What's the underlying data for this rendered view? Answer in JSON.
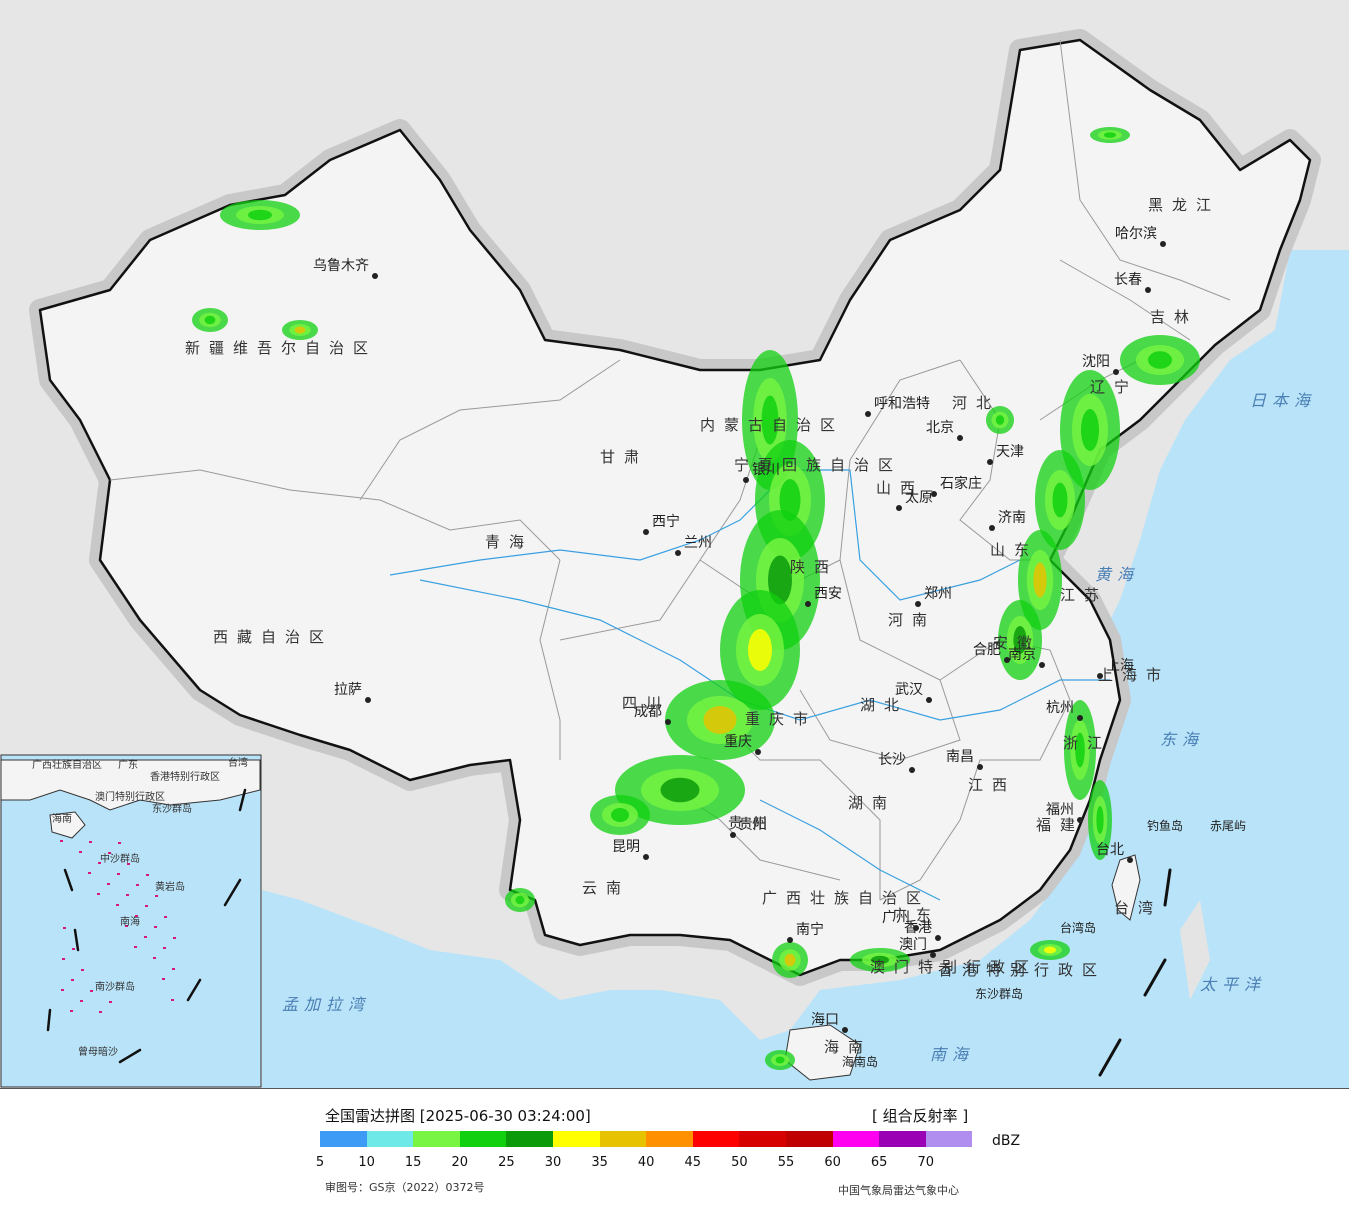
{
  "map": {
    "cities": [
      {
        "name": "乌鲁木齐"
      },
      {
        "name": "拉萨"
      },
      {
        "name": "西宁"
      },
      {
        "name": "兰州"
      },
      {
        "name": "银川"
      },
      {
        "name": "呼和浩特"
      },
      {
        "name": "北京"
      },
      {
        "name": "天津"
      },
      {
        "name": "石家庄"
      },
      {
        "name": "太原"
      },
      {
        "name": "济南"
      },
      {
        "name": "郑州"
      },
      {
        "name": "西安"
      },
      {
        "name": "成都"
      },
      {
        "name": "重庆"
      },
      {
        "name": "武汉"
      },
      {
        "name": "合肥"
      },
      {
        "name": "南京"
      },
      {
        "name": "上海"
      },
      {
        "name": "杭州"
      },
      {
        "name": "长沙"
      },
      {
        "name": "南昌"
      },
      {
        "name": "福州"
      },
      {
        "name": "贵阳"
      },
      {
        "name": "昆明"
      },
      {
        "name": "南宁"
      },
      {
        "name": "广州"
      },
      {
        "name": "香港"
      },
      {
        "name": "澳门"
      },
      {
        "name": "海口"
      },
      {
        "name": "台北"
      },
      {
        "name": "哈尔滨"
      },
      {
        "name": "长春"
      },
      {
        "name": "沈阳"
      }
    ],
    "provinces": [
      {
        "name": "新疆维吾尔自治区"
      },
      {
        "name": "西藏自治区"
      },
      {
        "name": "青海"
      },
      {
        "name": "甘肃"
      },
      {
        "name": "内蒙古自治区"
      },
      {
        "name": "四川"
      },
      {
        "name": "云南"
      },
      {
        "name": "黑龙江"
      },
      {
        "name": "吉林"
      },
      {
        "name": "辽宁"
      },
      {
        "name": "河北"
      },
      {
        "name": "山西"
      },
      {
        "name": "陕西"
      },
      {
        "name": "河南"
      },
      {
        "name": "山东"
      },
      {
        "name": "江苏"
      },
      {
        "name": "安徽"
      },
      {
        "name": "湖北"
      },
      {
        "name": "湖南"
      },
      {
        "name": "江西"
      },
      {
        "name": "浙江"
      },
      {
        "name": "福建"
      },
      {
        "name": "广东"
      },
      {
        "name": "贵州"
      },
      {
        "name": "广西壮族自治区"
      },
      {
        "name": "海南"
      },
      {
        "name": "台湾"
      },
      {
        "name": "上海市"
      },
      {
        "name": "重庆市"
      },
      {
        "name": "香港特别行政区"
      },
      {
        "name": "澳门特别行政区"
      },
      {
        "name": "宁夏回族自治区"
      }
    ],
    "seas": [
      {
        "name": "日本海"
      },
      {
        "name": "黄海"
      },
      {
        "name": "东海"
      },
      {
        "name": "太平洋"
      },
      {
        "name": "南海"
      },
      {
        "name": "孟加拉湾"
      }
    ],
    "islands": [
      {
        "name": "钓鱼岛"
      },
      {
        "name": "赤尾屿"
      },
      {
        "name": "台湾岛"
      },
      {
        "name": "东沙群岛"
      },
      {
        "name": "海南岛"
      }
    ],
    "inset": {
      "labels": [
        "南海",
        "海南",
        "广东",
        "广西壮族自治区",
        "台湾",
        "香港特别行政区",
        "澳门特别行政区",
        "东沙群岛",
        "中沙群岛",
        "黄岩岛",
        "南沙群岛",
        "曾母暗沙"
      ]
    }
  },
  "footer": {
    "title": "全国雷达拼图 [2025-06-30 03:24:00]",
    "product": "[ 组合反射率 ]",
    "unit": "dBZ",
    "approval": "审图号：GS京（2022）0372号",
    "credit": "中国气象局雷达气象中心"
  },
  "legend": {
    "colors": [
      "#3d9bf5",
      "#6fe8e8",
      "#78f542",
      "#10d010",
      "#0a9a0a",
      "#ffff00",
      "#e6c200",
      "#ff9000",
      "#ff0000",
      "#d60000",
      "#c00000",
      "#ff00f0",
      "#9a00b4",
      "#b08ef0"
    ],
    "ticks": [
      "5",
      "10",
      "15",
      "20",
      "25",
      "30",
      "35",
      "40",
      "45",
      "50",
      "55",
      "60",
      "65",
      "70"
    ]
  }
}
